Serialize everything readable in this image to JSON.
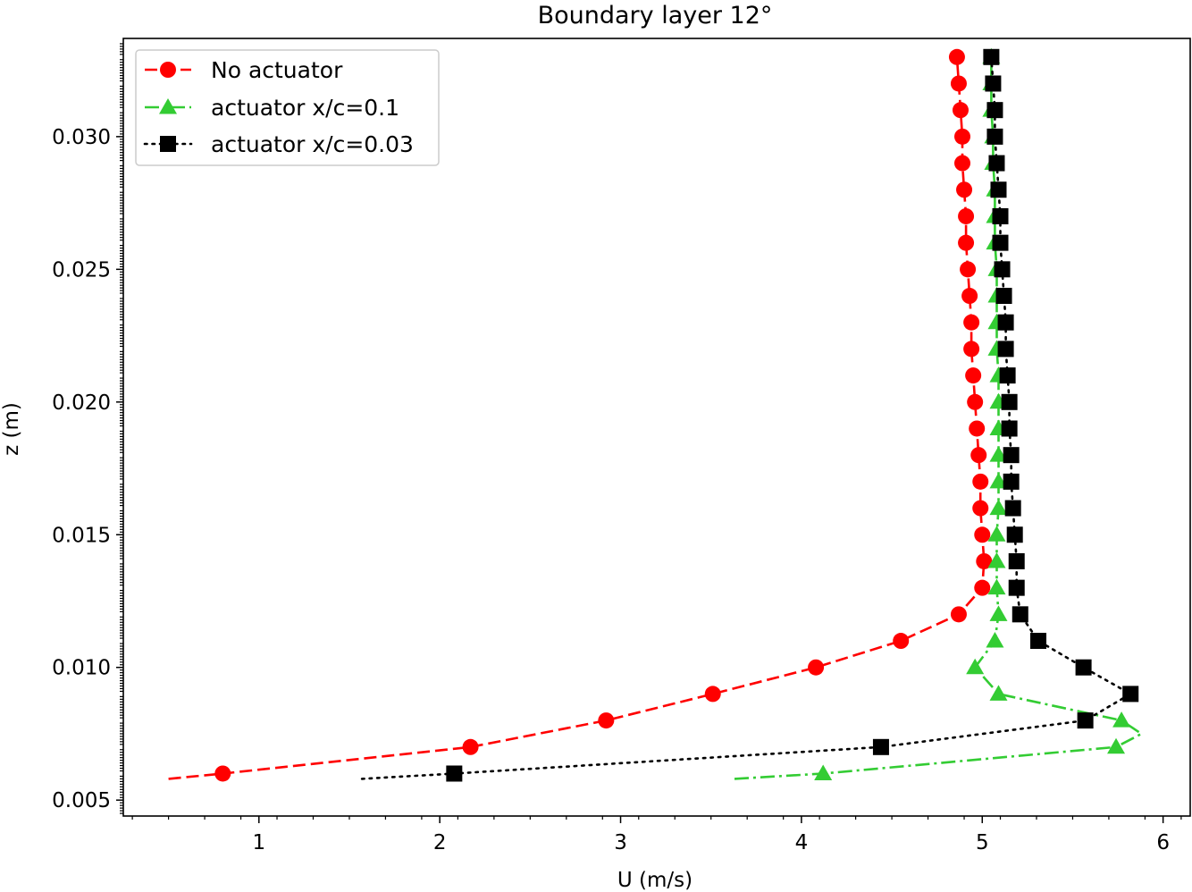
{
  "chart_data": {
    "type": "line",
    "title": "Boundary layer 12°",
    "xlabel": "U (m/s)",
    "ylabel": "z (m)",
    "xlim": [
      0.25,
      6.15
    ],
    "ylim": [
      0.0044,
      0.0337
    ],
    "x_ticks": [
      1,
      2,
      3,
      4,
      5,
      6
    ],
    "x_tick_labels": [
      "1",
      "2",
      "3",
      "4",
      "5",
      "6"
    ],
    "y_ticks": [
      0.005,
      0.01,
      0.015,
      0.02,
      0.025,
      0.03
    ],
    "y_tick_labels": [
      "0.005",
      "0.010",
      "0.015",
      "0.020",
      "0.025",
      "0.030"
    ],
    "legend_position": "top-left",
    "grid": false,
    "series": [
      {
        "name": "No actuator",
        "color": "#ff0000",
        "marker": "circle",
        "linestyle": "dashed",
        "line_start": [
          0.5,
          0.0058
        ],
        "points": [
          [
            0.8,
            0.006
          ],
          [
            2.17,
            0.007
          ],
          [
            2.92,
            0.008
          ],
          [
            3.51,
            0.009
          ],
          [
            4.08,
            0.01
          ],
          [
            4.55,
            0.011
          ],
          [
            4.87,
            0.012
          ],
          [
            5.0,
            0.013
          ],
          [
            5.01,
            0.014
          ],
          [
            5.0,
            0.015
          ],
          [
            4.99,
            0.016
          ],
          [
            4.99,
            0.017
          ],
          [
            4.98,
            0.018
          ],
          [
            4.97,
            0.019
          ],
          [
            4.96,
            0.02
          ],
          [
            4.95,
            0.021
          ],
          [
            4.94,
            0.022
          ],
          [
            4.94,
            0.023
          ],
          [
            4.93,
            0.024
          ],
          [
            4.92,
            0.025
          ],
          [
            4.91,
            0.026
          ],
          [
            4.91,
            0.027
          ],
          [
            4.9,
            0.028
          ],
          [
            4.89,
            0.029
          ],
          [
            4.89,
            0.03
          ],
          [
            4.88,
            0.031
          ],
          [
            4.87,
            0.032
          ],
          [
            4.86,
            0.033
          ]
        ]
      },
      {
        "name": "actuator x/c=0.1",
        "color": "#33cc33",
        "marker": "triangle",
        "linestyle": "dashdot",
        "line_start": [
          3.63,
          0.0058
        ],
        "line_bulge": [
          5.88,
          0.0075
        ],
        "points": [
          [
            4.12,
            0.006
          ],
          [
            5.74,
            0.007
          ],
          [
            5.77,
            0.008
          ],
          [
            5.09,
            0.009
          ],
          [
            4.96,
            0.01
          ],
          [
            5.07,
            0.011
          ],
          [
            5.09,
            0.012
          ],
          [
            5.08,
            0.013
          ],
          [
            5.08,
            0.014
          ],
          [
            5.08,
            0.015
          ],
          [
            5.09,
            0.016
          ],
          [
            5.09,
            0.017
          ],
          [
            5.09,
            0.018
          ],
          [
            5.09,
            0.019
          ],
          [
            5.09,
            0.02
          ],
          [
            5.09,
            0.021
          ],
          [
            5.08,
            0.022
          ],
          [
            5.08,
            0.023
          ],
          [
            5.08,
            0.024
          ],
          [
            5.08,
            0.025
          ],
          [
            5.07,
            0.026
          ],
          [
            5.07,
            0.027
          ],
          [
            5.07,
            0.028
          ],
          [
            5.06,
            0.029
          ],
          [
            5.06,
            0.03
          ],
          [
            5.05,
            0.031
          ],
          [
            5.05,
            0.032
          ],
          [
            5.05,
            0.033
          ]
        ]
      },
      {
        "name": "actuator x/c=0.03",
        "color": "#000000",
        "marker": "square",
        "linestyle": "dotted",
        "line_start": [
          1.57,
          0.0058
        ],
        "points": [
          [
            2.08,
            0.006
          ],
          [
            4.44,
            0.007
          ],
          [
            5.57,
            0.008
          ],
          [
            5.82,
            0.009
          ],
          [
            5.56,
            0.01
          ],
          [
            5.31,
            0.011
          ],
          [
            5.21,
            0.012
          ],
          [
            5.19,
            0.013
          ],
          [
            5.19,
            0.014
          ],
          [
            5.18,
            0.015
          ],
          [
            5.17,
            0.016
          ],
          [
            5.16,
            0.017
          ],
          [
            5.16,
            0.018
          ],
          [
            5.15,
            0.019
          ],
          [
            5.15,
            0.02
          ],
          [
            5.14,
            0.021
          ],
          [
            5.13,
            0.022
          ],
          [
            5.13,
            0.023
          ],
          [
            5.12,
            0.024
          ],
          [
            5.11,
            0.025
          ],
          [
            5.1,
            0.026
          ],
          [
            5.1,
            0.027
          ],
          [
            5.09,
            0.028
          ],
          [
            5.08,
            0.029
          ],
          [
            5.07,
            0.03
          ],
          [
            5.07,
            0.031
          ],
          [
            5.06,
            0.032
          ],
          [
            5.05,
            0.033
          ]
        ]
      }
    ]
  }
}
